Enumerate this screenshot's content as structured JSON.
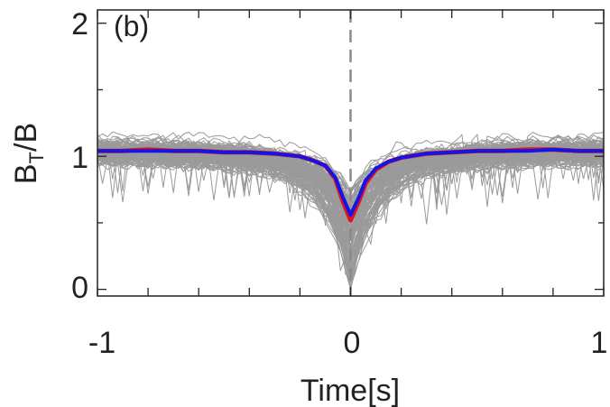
{
  "chart_data": {
    "type": "line",
    "panel_label": "(b)",
    "xlabel": "Time[s]",
    "ylabel": {
      "base": "B",
      "sub": "T",
      "rest": "/B"
    },
    "xlim": [
      -1,
      1
    ],
    "ylim": [
      -0.05,
      2.1
    ],
    "x_ticks": [
      {
        "value": -1,
        "label": "-1"
      },
      {
        "value": 0,
        "label": "0"
      },
      {
        "value": 1,
        "label": "1"
      }
    ],
    "y_ticks": [
      {
        "value": 0,
        "label": "0"
      },
      {
        "value": 1,
        "label": "1"
      },
      {
        "value": 2,
        "label": "2"
      }
    ],
    "reference_line": {
      "x": 0,
      "style": "dashed",
      "color": "#8a8a8a"
    },
    "grid": false,
    "individual_events": {
      "count": 120,
      "color": "#9a9a9a",
      "baseline": 1.04,
      "spread": 0.09,
      "dip_min_range": [
        0.0,
        0.75
      ]
    },
    "series": [
      {
        "color": "#e0141e",
        "x": [
          -1,
          -0.9,
          -0.8,
          -0.7,
          -0.6,
          -0.5,
          -0.4,
          -0.3,
          -0.2,
          -0.15,
          -0.1,
          -0.06,
          -0.03,
          0,
          0.03,
          0.06,
          0.1,
          0.15,
          0.2,
          0.3,
          0.4,
          0.5,
          0.6,
          0.7,
          0.8,
          0.9,
          1
        ],
        "values": [
          1.04,
          1.04,
          1.05,
          1.04,
          1.04,
          1.03,
          1.03,
          1.02,
          1.0,
          0.97,
          0.93,
          0.83,
          0.66,
          0.52,
          0.65,
          0.8,
          0.9,
          0.96,
          0.99,
          1.02,
          1.03,
          1.04,
          1.04,
          1.05,
          1.05,
          1.04,
          1.04
        ]
      },
      {
        "color": "#1414e6",
        "x": [
          -1,
          -0.9,
          -0.8,
          -0.7,
          -0.6,
          -0.5,
          -0.4,
          -0.3,
          -0.2,
          -0.15,
          -0.1,
          -0.06,
          -0.03,
          0,
          0.03,
          0.06,
          0.1,
          0.15,
          0.2,
          0.3,
          0.4,
          0.5,
          0.6,
          0.7,
          0.8,
          0.9,
          1
        ],
        "values": [
          1.04,
          1.04,
          1.04,
          1.04,
          1.04,
          1.03,
          1.03,
          1.02,
          1.0,
          0.97,
          0.93,
          0.84,
          0.69,
          0.56,
          0.68,
          0.82,
          0.91,
          0.96,
          0.99,
          1.02,
          1.03,
          1.04,
          1.04,
          1.04,
          1.05,
          1.04,
          1.04
        ]
      }
    ]
  }
}
